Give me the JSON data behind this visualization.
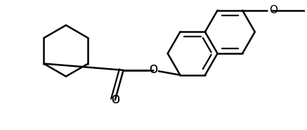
{
  "background_color": "#ffffff",
  "line_color": "#000000",
  "line_width": 1.8,
  "figsize": [
    4.37,
    1.85
  ],
  "dpi": 100,
  "label_O_carbonyl": {
    "text": "O",
    "fontsize": 11
  },
  "label_O_ester": {
    "text": "O",
    "fontsize": 11
  },
  "label_O_methoxy": {
    "text": "O",
    "fontsize": 11
  }
}
